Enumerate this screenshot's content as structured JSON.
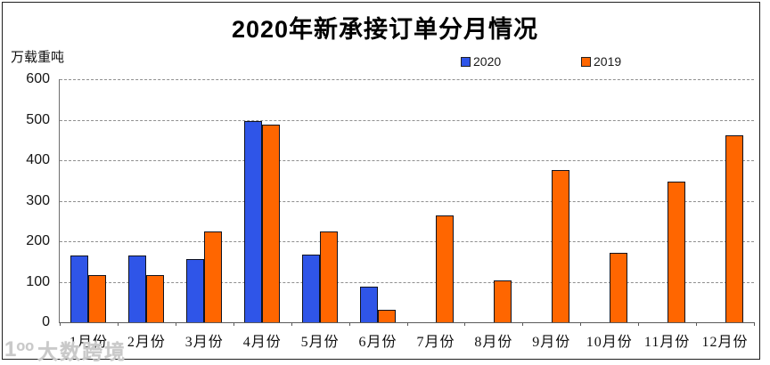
{
  "title": "2020年新承接订单分月情况",
  "y_axis_unit": "万载重吨",
  "legend": [
    {
      "label": "2020",
      "color": "#2F55E8"
    },
    {
      "label": "2019",
      "color": "#FF6600"
    }
  ],
  "watermark": {
    "logo": "1ᵒᵒ",
    "text": "大数跨境"
  },
  "chart_data": {
    "type": "bar",
    "title": "2020年新承接订单分月情况",
    "ylabel": "万载重吨",
    "categories": [
      "1月份",
      "2月份",
      "3月份",
      "4月份",
      "5月份",
      "6月份",
      "7月份",
      "8月份",
      "9月份",
      "10月份",
      "11月份",
      "12月份"
    ],
    "series": [
      {
        "name": "2020",
        "color": "#2F55E8",
        "values": [
          165,
          165,
          157,
          497,
          168,
          88,
          0,
          0,
          0,
          0,
          0,
          0
        ]
      },
      {
        "name": "2019",
        "color": "#FF6600",
        "values": [
          117,
          117,
          225,
          489,
          225,
          30,
          263,
          103,
          375,
          172,
          347,
          461
        ]
      }
    ],
    "ylim": [
      0,
      600
    ],
    "ytick_interval": 100,
    "grid": "horizontal-dashed",
    "legend_position": "top",
    "bar_border_color": "#10131F"
  }
}
